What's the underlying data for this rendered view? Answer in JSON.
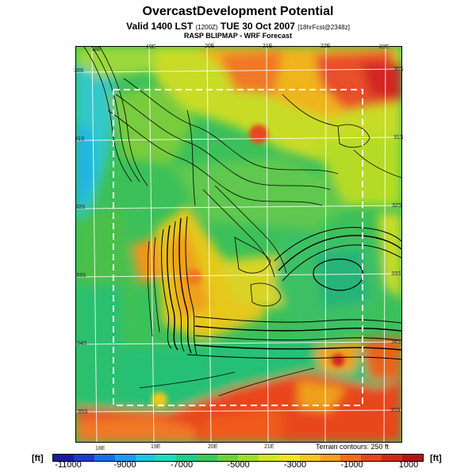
{
  "header": {
    "title": "OvercastDevelopment Potential",
    "valid_prefix": "Valid 1400 LST",
    "valid_code": "(1200Z)",
    "valid_date": "TUE 30 Oct 2007",
    "forecast_code": "[18hrFcst@2348z]",
    "subtitle": "RASP BLIPMAP - WRF Forecast"
  },
  "map": {
    "top_lon_labels": [
      "18E",
      "19E",
      "20E",
      "21E",
      "22E",
      "23E"
    ],
    "bottom_lon_labels": [
      "18E",
      "19E",
      "20E",
      "21E"
    ],
    "right_lat_labels": [
      "30S",
      "31S",
      "32S",
      "33S",
      "34S",
      "35S"
    ],
    "left_lat_labels": [
      "30S",
      "31S",
      "32S",
      "33S",
      "34S",
      "35S"
    ],
    "terrain_note": "Terrain contours: 250 ft"
  },
  "colorbar": {
    "unit_left": "[ft]",
    "unit_right": "[ft]",
    "tick_labels": [
      "-11000",
      "-9000",
      "-7000",
      "-5000",
      "-3000",
      "-1000",
      "1000"
    ],
    "colors": [
      "#1a1aa0",
      "#1a3ccc",
      "#1a6ee6",
      "#1a9cf0",
      "#1ac8e6",
      "#1adcc0",
      "#1ad08a",
      "#3cc85a",
      "#6ed23c",
      "#a0dc28",
      "#d2e61e",
      "#f0e61e",
      "#f5c81e",
      "#f5a01e",
      "#f06e1e",
      "#e6461e",
      "#d2281e",
      "#b41414"
    ]
  }
}
